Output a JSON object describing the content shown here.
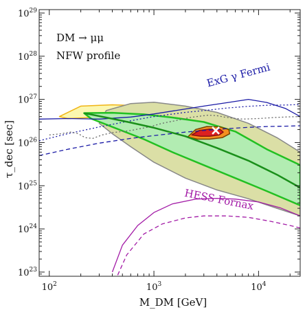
{
  "chart_data": {
    "type": "line",
    "title": "",
    "xlabel": "M_DM [GeV]",
    "ylabel": "τ_dec [sec]",
    "x_scale": "log",
    "y_scale": "log",
    "xlim": [
      80,
      25000
    ],
    "ylim": [
      8e+22,
      1.2e+29
    ],
    "grid": false,
    "annotations": [
      {
        "text": "DM → μμ"
      },
      {
        "text": "NFW profile"
      },
      {
        "text": "ExG γ Fermi"
      },
      {
        "text": "HESS Fornax"
      }
    ],
    "x_tick_labels": [
      {
        "base": "10",
        "exp": "2",
        "value": 100
      },
      {
        "base": "10",
        "exp": "3",
        "value": 1000
      },
      {
        "base": "10",
        "exp": "4",
        "value": 10000
      }
    ],
    "y_tick_labels": [
      {
        "base": "10",
        "exp": "23",
        "value": 1e+23
      },
      {
        "base": "10",
        "exp": "24",
        "value": 1e+24
      },
      {
        "base": "10",
        "exp": "25",
        "value": 1e+25
      },
      {
        "base": "10",
        "exp": "26",
        "value": 1e+26
      },
      {
        "base": "10",
        "exp": "27",
        "value": 1e+27
      },
      {
        "base": "10",
        "exp": "28",
        "value": 1e+28
      },
      {
        "base": "10",
        "exp": "29",
        "value": 1e+29
      }
    ],
    "best_fit": {
      "x": 3900,
      "y": 1.9e+26
    },
    "series": [
      {
        "style": "solid",
        "color": "#1a1aa6",
        "points": [
          [
            80,
            3.5e+26
          ],
          [
            150,
            3.6e+26
          ],
          [
            300,
            3.5e+26
          ],
          [
            600,
            3.9e+26
          ],
          [
            1000,
            4.6e+26
          ],
          [
            2000,
            6e+26
          ],
          [
            3000,
            7e+26
          ],
          [
            5000,
            8.4e+26
          ],
          [
            8000,
            1e+27
          ],
          [
            12000,
            8.5e+26
          ],
          [
            18000,
            6.2e+26
          ],
          [
            25000,
            4e+26
          ]
        ]
      },
      {
        "style": "dotted",
        "color": "#1a1aa6",
        "points": [
          [
            80,
            1.1e+26
          ],
          [
            150,
            1.6e+26
          ],
          [
            300,
            2.3e+26
          ],
          [
            600,
            3.2e+26
          ],
          [
            1000,
            4e+26
          ],
          [
            2000,
            5e+26
          ],
          [
            3000,
            5.5e+26
          ],
          [
            5000,
            6.3e+26
          ],
          [
            8000,
            6.9e+26
          ],
          [
            12000,
            7.3e+26
          ],
          [
            18000,
            7.4e+26
          ],
          [
            25000,
            7.6e+26
          ]
        ]
      },
      {
        "style": "dashed",
        "color": "#1a1aa6",
        "points": [
          [
            80,
            5e+25
          ],
          [
            150,
            7e+25
          ],
          [
            300,
            9.7e+25
          ],
          [
            600,
            1.25e+26
          ],
          [
            1000,
            1.45e+26
          ],
          [
            2000,
            1.75e+26
          ],
          [
            3000,
            1.9e+26
          ],
          [
            5000,
            2.1e+26
          ],
          [
            8000,
            2.25e+26
          ],
          [
            12000,
            2.35e+26
          ],
          [
            18000,
            2.4e+26
          ],
          [
            25000,
            2.45e+26
          ]
        ]
      },
      {
        "style": "solid",
        "color": "#a21aa6",
        "points": [
          [
            400,
            1e+23
          ],
          [
            500,
            4.2e+23
          ],
          [
            700,
            1.2e+24
          ],
          [
            1000,
            2.4e+24
          ],
          [
            1500,
            3.8e+24
          ],
          [
            2500,
            4.9e+24
          ],
          [
            4000,
            5.1e+24
          ],
          [
            6000,
            4.9e+24
          ],
          [
            10000,
            4.2e+24
          ],
          [
            16000,
            3.1e+24
          ],
          [
            25000,
            2e+24
          ]
        ]
      },
      {
        "style": "dashed",
        "color": "#a21aa6",
        "points": [
          [
            450,
            8.5e+22
          ],
          [
            550,
            2.5e+23
          ],
          [
            800,
            7.6e+23
          ],
          [
            1200,
            1.3e+24
          ],
          [
            2000,
            1.8e+24
          ],
          [
            3000,
            2e+24
          ],
          [
            5000,
            2e+24
          ],
          [
            8000,
            1.85e+24
          ],
          [
            13000,
            1.5e+24
          ],
          [
            20000,
            1.2e+24
          ],
          [
            25000,
            1.05e+24
          ]
        ]
      },
      {
        "style": "dotted",
        "color": "#666666",
        "points": [
          [
            100,
            1.5e+26
          ],
          [
            130,
            1.6e+26
          ],
          [
            160,
            1.75e+26
          ],
          [
            190,
            1.6e+26
          ],
          [
            220,
            1.3e+26
          ],
          [
            260,
            1.25e+26
          ],
          [
            320,
            1.5e+26
          ],
          [
            400,
            1.7e+26
          ],
          [
            600,
            1.9e+26
          ],
          [
            900,
            2.3e+26
          ],
          [
            1200,
            2.8e+26
          ],
          [
            1700,
            3.3e+26
          ],
          [
            2200,
            3.8e+26
          ],
          [
            2800,
            4.1e+26
          ],
          [
            3300,
            4.3e+26
          ],
          [
            4000,
            4.2e+26
          ],
          [
            4700,
            3.9e+26
          ],
          [
            5500,
            3.7e+26
          ],
          [
            7000,
            3.5e+26
          ],
          [
            10000,
            3.6e+26
          ],
          [
            14000,
            3.8e+26
          ],
          [
            20000,
            3.95e+26
          ],
          [
            25000,
            4e+26
          ]
        ]
      },
      {
        "style": "solid",
        "color": "#1a8f1a",
        "points": [
          [
            215,
            4.8e+26
          ],
          [
            350,
            3.8e+26
          ],
          [
            600,
            2.9e+26
          ],
          [
            1000,
            2.2e+26
          ],
          [
            2000,
            1.4e+26
          ],
          [
            4000,
            7.5e+25
          ],
          [
            8000,
            3.8e+25
          ],
          [
            15000,
            1.8e+25
          ],
          [
            25000,
            9e+24
          ]
        ]
      }
    ],
    "regions": [
      {
        "name": "",
        "fill": "#fbf7b0",
        "edge": "#f0b415",
        "points": [
          [
            125,
            4e+26
          ],
          [
            200,
            7e+26
          ],
          [
            400,
            7.5e+26
          ],
          [
            1000,
            7e+26
          ],
          [
            2000,
            6e+26
          ],
          [
            4000,
            4.5e+26
          ],
          [
            8000,
            2.5e+26
          ],
          [
            15000,
            1.2e+26
          ],
          [
            25000,
            6e+25
          ],
          [
            25000,
            2.5e+25
          ],
          [
            15000,
            3.5e+25
          ],
          [
            8000,
            6e+25
          ],
          [
            4000,
            1.1e+26
          ],
          [
            2000,
            1.9e+26
          ],
          [
            1000,
            2.7e+26
          ],
          [
            500,
            3.4e+26
          ],
          [
            250,
            3.8e+26
          ],
          [
            150,
            3.6e+26
          ]
        ]
      },
      {
        "name": "",
        "fill": "#dbdfa6",
        "edge": "#888888",
        "points": [
          [
            350,
            5.5e+26
          ],
          [
            600,
            8e+26
          ],
          [
            1000,
            8.6e+26
          ],
          [
            2000,
            7e+26
          ],
          [
            4000,
            5e+26
          ],
          [
            8000,
            2.8e+26
          ],
          [
            15000,
            1.3e+26
          ],
          [
            25000,
            6e+25
          ],
          [
            25000,
            2e+24
          ],
          [
            15000,
            3e+24
          ],
          [
            8000,
            5e+24
          ],
          [
            4000,
            8e+24
          ],
          [
            2000,
            1.5e+25
          ],
          [
            1000,
            3.5e+25
          ],
          [
            600,
            8e+25
          ],
          [
            400,
            1.6e+26
          ],
          [
            300,
            2.8e+26
          ]
        ]
      },
      {
        "name": "",
        "fill": "#b2ecb2",
        "edge": "#22c022",
        "points": [
          [
            215,
            4.8e+26
          ],
          [
            400,
            4.9e+26
          ],
          [
            800,
            4.5e+26
          ],
          [
            1500,
            3.8e+26
          ],
          [
            3000,
            3e+26
          ],
          [
            6000,
            1.8e+26
          ],
          [
            12000,
            7e+25
          ],
          [
            25000,
            3e+25
          ],
          [
            25000,
            3.5e+24
          ],
          [
            12000,
            7.5e+24
          ],
          [
            6000,
            1.5e+25
          ],
          [
            3000,
            3e+25
          ],
          [
            1500,
            6e+25
          ],
          [
            800,
            1.2e+26
          ],
          [
            400,
            2.3e+26
          ],
          [
            250,
            3.6e+26
          ]
        ]
      },
      {
        "name": "",
        "fill": "#f59020",
        "edge": "#7a4000",
        "points": [
          [
            2100,
            1.35e+26
          ],
          [
            2500,
            2e+26
          ],
          [
            3200,
            2.35e+26
          ],
          [
            4300,
            2.3e+26
          ],
          [
            5200,
            2e+26
          ],
          [
            5300,
            1.6e+26
          ],
          [
            4500,
            1.3e+26
          ],
          [
            3400,
            1.2e+26
          ],
          [
            2600,
            1.2e+26
          ]
        ]
      },
      {
        "name": "",
        "fill": "#dd2020",
        "edge": "#881010",
        "points": [
          [
            2300,
            1.5e+26
          ],
          [
            2700,
            1.9e+26
          ],
          [
            3400,
            2.05e+26
          ],
          [
            4300,
            2e+26
          ],
          [
            4600,
            1.75e+26
          ],
          [
            4200,
            1.5e+26
          ],
          [
            3400,
            1.4e+26
          ],
          [
            2800,
            1.4e+26
          ]
        ]
      }
    ]
  }
}
